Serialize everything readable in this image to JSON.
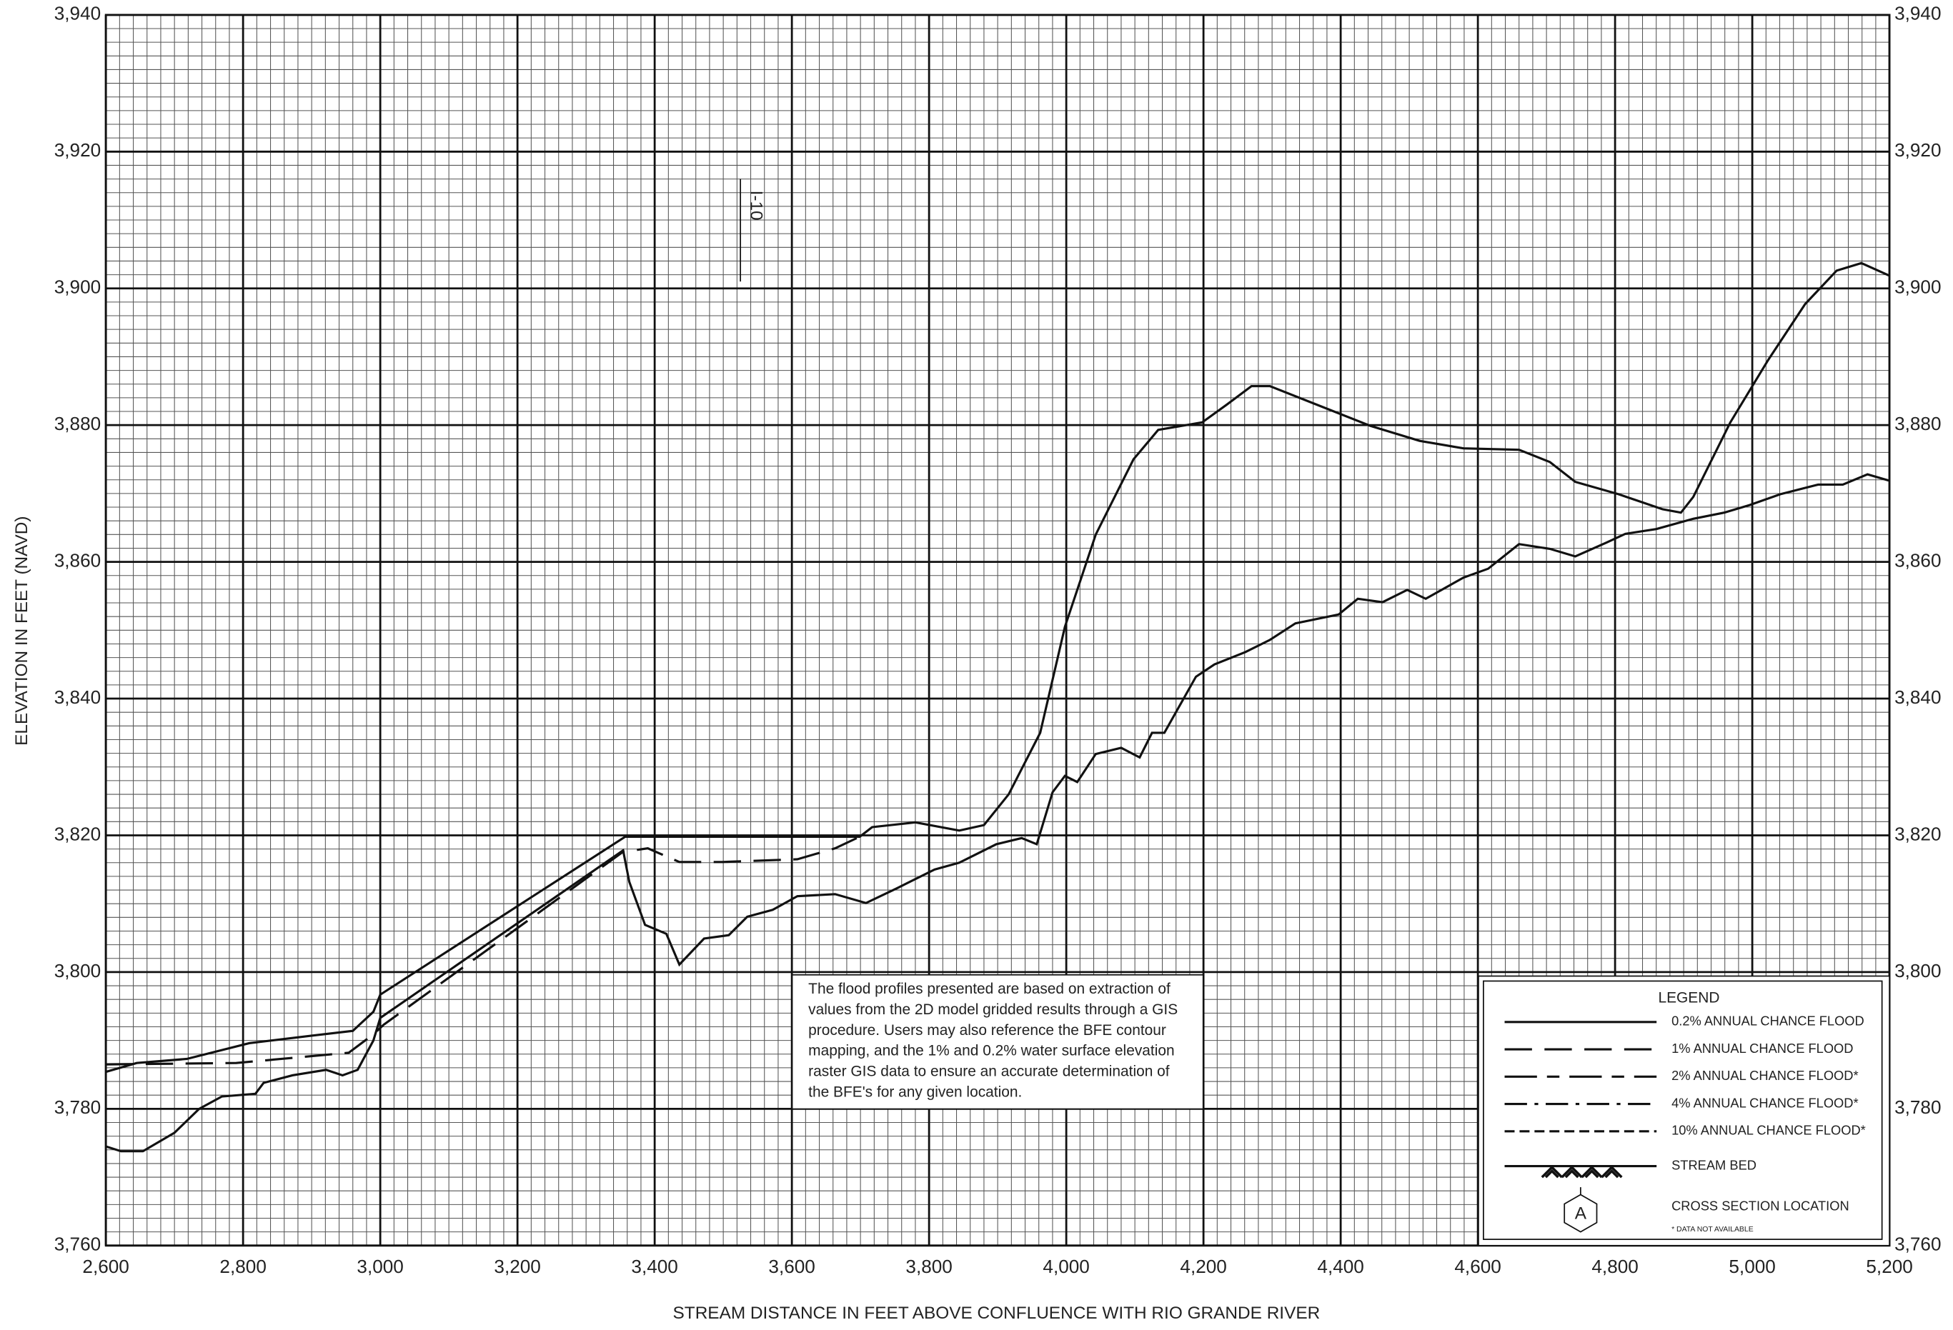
{
  "chart_data": {
    "type": "line",
    "xlabel": "STREAM DISTANCE IN FEET ABOVE CONFLUENCE WITH RIO GRANDE RIVER",
    "ylabel": "ELEVATION IN FEET (NAVD)",
    "xlim": [
      2600,
      5200
    ],
    "xticks": [
      {
        "value": 2600,
        "label": "2,600"
      },
      {
        "value": 2800,
        "label": "2,800"
      },
      {
        "value": 3000,
        "label": "3,000"
      },
      {
        "value": 3200,
        "label": "3,200"
      },
      {
        "value": 3400,
        "label": "3,400"
      },
      {
        "value": 3600,
        "label": "3,600"
      },
      {
        "value": 3800,
        "label": "3,800"
      },
      {
        "value": 4000,
        "label": "4,000"
      },
      {
        "value": 4200,
        "label": "4,200"
      },
      {
        "value": 4400,
        "label": "4,400"
      },
      {
        "value": 4600,
        "label": "4,600"
      },
      {
        "value": 4800,
        "label": "4,800"
      },
      {
        "value": 5000,
        "label": "5,000"
      },
      {
        "value": 5200,
        "label": "5,200"
      }
    ],
    "ylim": [
      3760,
      3940
    ],
    "yticks": [
      {
        "value": 3760,
        "label": "3,760"
      },
      {
        "value": 3780,
        "label": "3,780"
      },
      {
        "value": 3800,
        "label": "3,800"
      },
      {
        "value": 3820,
        "label": "3,820"
      },
      {
        "value": 3840,
        "label": "3,840"
      },
      {
        "value": 3860,
        "label": "3,860"
      },
      {
        "value": 3880,
        "label": "3,880"
      },
      {
        "value": 3900,
        "label": "3,900"
      },
      {
        "value": 3920,
        "label": "3,920"
      },
      {
        "value": 3940,
        "label": "3,940"
      }
    ],
    "grid": true,
    "color": "#111111",
    "series": [
      {
        "style": "solid",
        "x": [
          2600,
          2645,
          2718,
          2809,
          2900,
          2960,
          2990,
          3000,
          3357,
          3699,
          3717,
          3780,
          3844,
          3880,
          3916,
          3962,
          3998,
          4043,
          4098,
          4134,
          4198,
          4234,
          4270,
          4297,
          4370,
          4443,
          4515,
          4579,
          4660,
          4705,
          4742,
          4805,
          4869,
          4896,
          4914,
          4968,
          5023,
          5077,
          5123,
          5159,
          5199
        ],
        "values": [
          3785.4,
          3786.7,
          3787.3,
          3789.6,
          3790.7,
          3791.4,
          3794.2,
          3796.7,
          3819.8,
          3819.8,
          3821.2,
          3821.9,
          3820.7,
          3821.5,
          3826,
          3835,
          3850.5,
          3864,
          3875,
          3879.3,
          3880.4,
          3883,
          3885.7,
          3885.7,
          3882.8,
          3879.9,
          3877.7,
          3876.6,
          3876.4,
          3874.6,
          3871.7,
          3869.9,
          3867.7,
          3867.2,
          3869.5,
          3880.4,
          3889.5,
          3897.7,
          3902.6,
          3903.7,
          3901.9
        ]
      },
      {
        "style": "dash",
        "x": [
          2600,
          2790,
          2954,
          2990,
          3005,
          3354,
          3390,
          3436,
          3499,
          3608,
          3663,
          3699
        ],
        "values": [
          3786.5,
          3786.7,
          3788.2,
          3790.9,
          3792.3,
          3817.6,
          3818.1,
          3816.1,
          3816.1,
          3816.5,
          3818.1,
          3819.8
        ]
      },
      {
        "style": "bed",
        "x": [
          2600,
          2622,
          2654,
          2700,
          2736,
          2769,
          2818,
          2830,
          2872,
          2921,
          2945,
          2967,
          2990,
          3000,
          3354,
          3363,
          3386,
          3417,
          3436,
          3472,
          3508,
          3535,
          3572,
          3608,
          3663,
          3708,
          3754,
          3808,
          3844,
          3898,
          3935,
          3957,
          3980,
          3998,
          4016,
          4043,
          4080,
          4107,
          4125,
          4143,
          4189,
          4216,
          4261,
          4297,
          4334,
          4397,
          4425,
          4461,
          4497,
          4524,
          4579,
          4615,
          4660,
          4705,
          4742,
          4787,
          4815,
          4860,
          4914,
          4959,
          4996,
          5041,
          5096,
          5132,
          5168,
          5199
        ],
        "values": [
          3774.5,
          3773.8,
          3773.8,
          3776.5,
          3780,
          3781.8,
          3782.2,
          3783.8,
          3784.9,
          3785.7,
          3784.9,
          3785.7,
          3790,
          3793.3,
          3817.8,
          3813.2,
          3806.9,
          3805.6,
          3801.1,
          3804.9,
          3805.4,
          3808.1,
          3809.1,
          3811.1,
          3811.4,
          3810.1,
          3812.3,
          3815,
          3816,
          3818.7,
          3819.6,
          3818.7,
          3826.3,
          3828.7,
          3827.8,
          3831.9,
          3832.8,
          3831.4,
          3835,
          3835,
          3843.2,
          3845,
          3846.8,
          3848.6,
          3851,
          3852.3,
          3854.6,
          3854.1,
          3855.9,
          3854.6,
          3857.7,
          3859,
          3862.6,
          3861.9,
          3860.8,
          3862.8,
          3864.1,
          3864.8,
          3866.3,
          3867.2,
          3868.3,
          3869.9,
          3871.3,
          3871.3,
          3872.8,
          3871.9
        ]
      }
    ],
    "annotations": [
      {
        "text": "I-10",
        "x": 3525,
        "y1": 3901,
        "y2": 3916
      }
    ],
    "note": [
      "The flood profiles presented are based on extraction of",
      "values from the 2D model gridded results through a GIS",
      "procedure.  Users may also reference the BFE contour",
      "mapping, and the 1% and 0.2% water surface elevation",
      "raster GIS data to ensure an accurate determination of",
      "the BFE's for any given location."
    ],
    "legend": {
      "title": "LEGEND",
      "items": [
        {
          "label": "0.2% ANNUAL CHANCE FLOOD",
          "style": "solid"
        },
        {
          "label": "1% ANNUAL CHANCE FLOOD",
          "style": "dash"
        },
        {
          "label": "2% ANNUAL CHANCE FLOOD*",
          "style": "longshort"
        },
        {
          "label": "4% ANNUAL CHANCE FLOOD*",
          "style": "dashdot"
        },
        {
          "label": "10% ANNUAL CHANCE FLOOD*",
          "style": "short"
        },
        {
          "label": "STREAM BED",
          "style": "bed"
        },
        {
          "label": "CROSS SECTION LOCATION",
          "style": "xs",
          "symbol": "A"
        }
      ],
      "footnote": "* DATA NOT AVAILABLE"
    }
  }
}
